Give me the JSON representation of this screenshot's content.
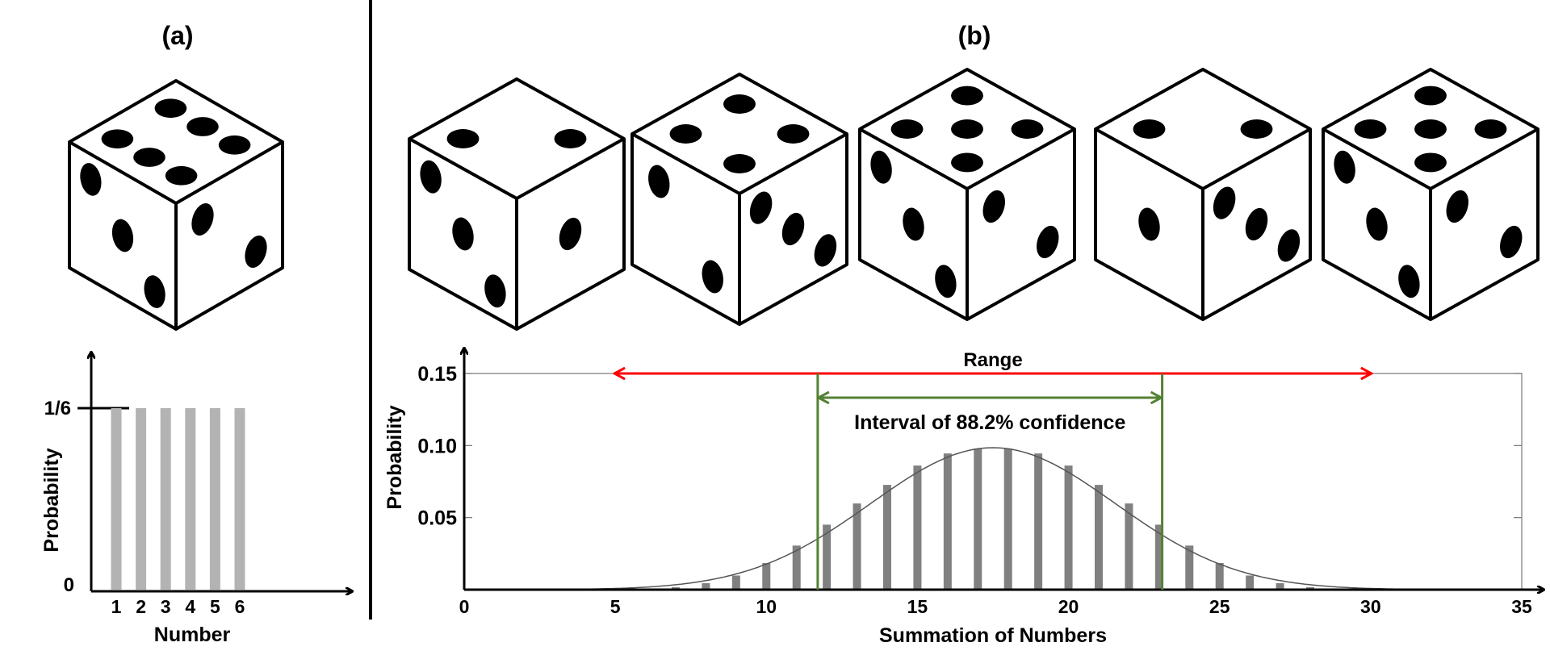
{
  "panel_a": {
    "label": "(a)",
    "chart_data": {
      "type": "bar",
      "categories": [
        "1",
        "2",
        "3",
        "4",
        "5",
        "6"
      ],
      "values": [
        0.1667,
        0.1667,
        0.1667,
        0.1667,
        0.1667,
        0.1667
      ],
      "ytick_labels": [
        "0",
        "1/6"
      ],
      "ytick_values": [
        0,
        0.1667
      ],
      "xlabel": "Number",
      "ylabel": "Probability",
      "bar_color": "#b3b3b3"
    }
  },
  "panel_b": {
    "label": "(b)",
    "chart_data": {
      "type": "bar",
      "x": [
        5,
        6,
        7,
        8,
        9,
        10,
        11,
        12,
        13,
        14,
        15,
        16,
        17,
        18,
        19,
        20,
        21,
        22,
        23,
        24,
        25,
        26,
        27,
        28,
        29,
        30
      ],
      "values": [
        0.0001,
        0.0005,
        0.0017,
        0.0045,
        0.0098,
        0.0185,
        0.0306,
        0.0451,
        0.0598,
        0.0727,
        0.0861,
        0.0945,
        0.0979,
        0.0979,
        0.0945,
        0.0861,
        0.0727,
        0.0598,
        0.0451,
        0.0306,
        0.0185,
        0.0098,
        0.0045,
        0.0017,
        0.0005,
        0.0001
      ],
      "curve": "normal fit",
      "xlim": [
        0,
        35
      ],
      "ylim": [
        0,
        0.15
      ],
      "xticks": [
        0,
        5,
        10,
        15,
        20,
        25,
        30,
        35
      ],
      "yticks": [
        0.05,
        0.1,
        0.15
      ],
      "ytick_labels": [
        "0.05",
        "0.10",
        "0.15"
      ],
      "xlabel": "Summation of Numbers",
      "ylabel": "Probability",
      "bar_color": "#808080",
      "range": {
        "label": "Range",
        "from": 5,
        "to": 30,
        "color": "#ff0000"
      },
      "interval": {
        "label": "Interval of 88.2% confidence",
        "from": 11.7,
        "to": 23.1,
        "color": "#548235"
      }
    }
  },
  "dice_a": {
    "top": 6,
    "left": 3,
    "right": 2
  },
  "dice_b": [
    {
      "top": 2,
      "left": 3,
      "right": 1
    },
    {
      "top": 4,
      "left": 2,
      "right": 3
    },
    {
      "top": 5,
      "left": 3,
      "right": 2
    },
    {
      "top": 2,
      "left": 1,
      "right": 3
    },
    {
      "top": 5,
      "left": 3,
      "right": 2
    }
  ]
}
